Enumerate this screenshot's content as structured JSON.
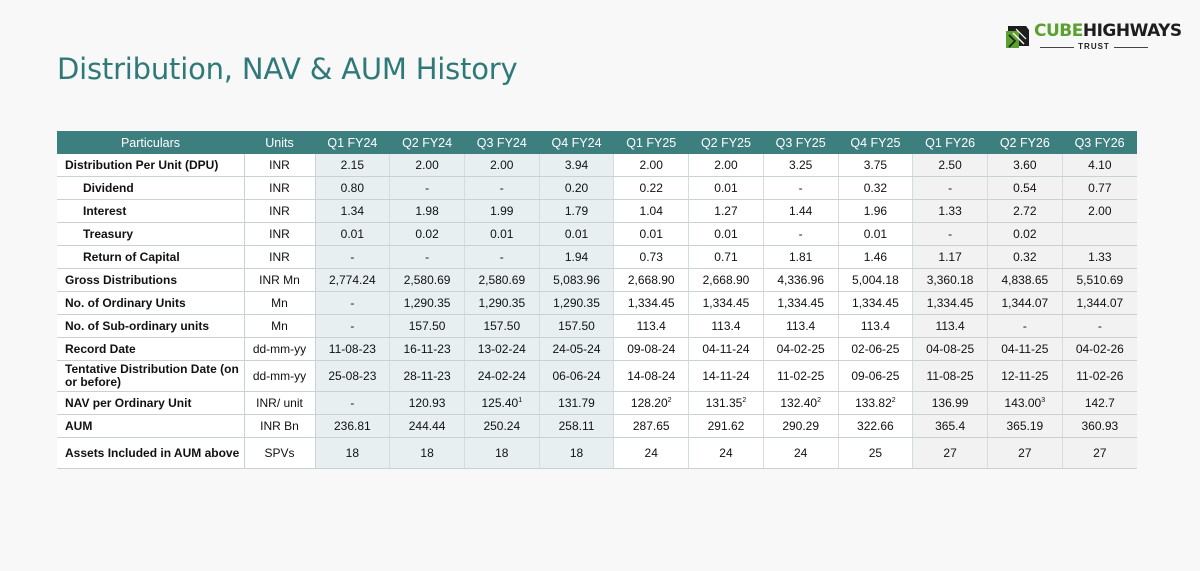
{
  "logo": {
    "word1": "CUBE",
    "word2": "HIGHWAYS",
    "sub": "TRUST",
    "colors": {
      "green": "#5aa12f",
      "dark": "#1e1e1e"
    }
  },
  "title": "Distribution, NAV & AUM History",
  "table": {
    "headers": [
      "Particulars",
      "Units",
      "Q1 FY24",
      "Q2 FY24",
      "Q3 FY24",
      "Q4 FY24",
      "Q1 FY25",
      "Q2 FY25",
      "Q3 FY25",
      "Q4 FY25",
      "Q1 FY26",
      "Q2 FY26",
      "Q3 FY26"
    ],
    "rows": [
      {
        "label": "Distribution Per Unit (DPU)",
        "unit": "INR",
        "sub": false,
        "values": [
          [
            "2.15",
            ""
          ],
          [
            "2.00",
            ""
          ],
          [
            "2.00",
            ""
          ],
          [
            "3.94",
            ""
          ],
          [
            "2.00",
            ""
          ],
          [
            "2.00",
            ""
          ],
          [
            "3.25",
            ""
          ],
          [
            "3.75",
            ""
          ],
          [
            "2.50",
            ""
          ],
          [
            "3.60",
            ""
          ],
          [
            "4.10",
            ""
          ]
        ]
      },
      {
        "label": "Dividend",
        "unit": "INR",
        "sub": true,
        "values": [
          [
            "0.80",
            ""
          ],
          [
            "-",
            ""
          ],
          [
            "-",
            ""
          ],
          [
            "0.20",
            ""
          ],
          [
            "0.22",
            ""
          ],
          [
            "0.01",
            ""
          ],
          [
            "-",
            ""
          ],
          [
            "0.32",
            ""
          ],
          [
            "-",
            ""
          ],
          [
            "0.54",
            ""
          ],
          [
            "0.77",
            ""
          ]
        ]
      },
      {
        "label": "Interest",
        "unit": "INR",
        "sub": true,
        "values": [
          [
            "1.34",
            ""
          ],
          [
            "1.98",
            ""
          ],
          [
            "1.99",
            ""
          ],
          [
            "1.79",
            ""
          ],
          [
            "1.04",
            ""
          ],
          [
            "1.27",
            ""
          ],
          [
            "1.44",
            ""
          ],
          [
            "1.96",
            ""
          ],
          [
            "1.33",
            ""
          ],
          [
            "2.72",
            ""
          ],
          [
            "2.00",
            ""
          ]
        ]
      },
      {
        "label": "Treasury",
        "unit": "INR",
        "sub": true,
        "values": [
          [
            "0.01",
            ""
          ],
          [
            "0.02",
            ""
          ],
          [
            "0.01",
            ""
          ],
          [
            "0.01",
            ""
          ],
          [
            "0.01",
            ""
          ],
          [
            "0.01",
            ""
          ],
          [
            "-",
            ""
          ],
          [
            "0.01",
            ""
          ],
          [
            "-",
            ""
          ],
          [
            "0.02",
            ""
          ],
          [
            "",
            ""
          ]
        ]
      },
      {
        "label": "Return of Capital",
        "unit": "INR",
        "sub": true,
        "values": [
          [
            "-",
            ""
          ],
          [
            "-",
            ""
          ],
          [
            "-",
            ""
          ],
          [
            "1.94",
            ""
          ],
          [
            "0.73",
            ""
          ],
          [
            "0.71",
            ""
          ],
          [
            "1.81",
            ""
          ],
          [
            "1.46",
            ""
          ],
          [
            "1.17",
            ""
          ],
          [
            "0.32",
            ""
          ],
          [
            "1.33",
            ""
          ]
        ]
      },
      {
        "label": "Gross Distributions",
        "unit": "INR Mn",
        "sub": false,
        "values": [
          [
            "2,774.24",
            ""
          ],
          [
            "2,580.69",
            ""
          ],
          [
            "2,580.69",
            ""
          ],
          [
            "5,083.96",
            ""
          ],
          [
            "2,668.90",
            ""
          ],
          [
            "2,668.90",
            ""
          ],
          [
            "4,336.96",
            ""
          ],
          [
            "5,004.18",
            ""
          ],
          [
            "3,360.18",
            ""
          ],
          [
            "4,838.65",
            ""
          ],
          [
            "5,510.69",
            ""
          ]
        ]
      },
      {
        "label": "No. of Ordinary Units",
        "unit": "Mn",
        "sub": false,
        "values": [
          [
            "-",
            ""
          ],
          [
            "1,290.35",
            ""
          ],
          [
            "1,290.35",
            ""
          ],
          [
            "1,290.35",
            ""
          ],
          [
            "1,334.45",
            ""
          ],
          [
            "1,334.45",
            ""
          ],
          [
            "1,334.45",
            ""
          ],
          [
            "1,334.45",
            ""
          ],
          [
            "1,334.45",
            ""
          ],
          [
            "1,344.07",
            ""
          ],
          [
            "1,344.07",
            ""
          ]
        ]
      },
      {
        "label": "No. of Sub-ordinary units",
        "unit": "Mn",
        "sub": false,
        "values": [
          [
            "-",
            ""
          ],
          [
            "157.50",
            ""
          ],
          [
            "157.50",
            ""
          ],
          [
            "157.50",
            ""
          ],
          [
            "113.4",
            ""
          ],
          [
            "113.4",
            ""
          ],
          [
            "113.4",
            ""
          ],
          [
            "113.4",
            ""
          ],
          [
            "113.4",
            ""
          ],
          [
            "-",
            ""
          ],
          [
            "-",
            ""
          ]
        ]
      },
      {
        "label": "Record Date",
        "unit": "dd-mm-yy",
        "sub": false,
        "values": [
          [
            "11-08-23",
            ""
          ],
          [
            "16-11-23",
            ""
          ],
          [
            "13-02-24",
            ""
          ],
          [
            "24-05-24",
            ""
          ],
          [
            "09-08-24",
            ""
          ],
          [
            "04-11-24",
            ""
          ],
          [
            "04-02-25",
            ""
          ],
          [
            "02-06-25",
            ""
          ],
          [
            "04-08-25",
            ""
          ],
          [
            "04-11-25",
            ""
          ],
          [
            "04-02-26",
            ""
          ]
        ]
      },
      {
        "label": "Tentative Distribution Date (on or before)",
        "unit": "dd-mm-yy",
        "sub": false,
        "tall": true,
        "values": [
          [
            "25-08-23",
            ""
          ],
          [
            "28-11-23",
            ""
          ],
          [
            "24-02-24",
            ""
          ],
          [
            "06-06-24",
            ""
          ],
          [
            "14-08-24",
            ""
          ],
          [
            "14-11-24",
            ""
          ],
          [
            "11-02-25",
            ""
          ],
          [
            "09-06-25",
            ""
          ],
          [
            "11-08-25",
            ""
          ],
          [
            "12-11-25",
            ""
          ],
          [
            "11-02-26",
            ""
          ]
        ]
      },
      {
        "label": "NAV per Ordinary Unit",
        "unit": "INR/ unit",
        "sub": false,
        "values": [
          [
            "-",
            ""
          ],
          [
            "120.93",
            ""
          ],
          [
            "125.40",
            "1"
          ],
          [
            "131.79",
            ""
          ],
          [
            "128.20",
            "2"
          ],
          [
            "131.35",
            "2"
          ],
          [
            "132.40",
            "2"
          ],
          [
            "133.82",
            "2"
          ],
          [
            "136.99",
            ""
          ],
          [
            "143.00",
            "3"
          ],
          [
            "142.7",
            ""
          ]
        ]
      },
      {
        "label": "AUM",
        "unit": "INR Bn",
        "sub": false,
        "values": [
          [
            "236.81",
            ""
          ],
          [
            "244.44",
            ""
          ],
          [
            "250.24",
            ""
          ],
          [
            "258.11",
            ""
          ],
          [
            "287.65",
            ""
          ],
          [
            "291.62",
            ""
          ],
          [
            "290.29",
            ""
          ],
          [
            "322.66",
            ""
          ],
          [
            "365.4",
            ""
          ],
          [
            "365.19",
            ""
          ],
          [
            "360.93",
            ""
          ]
        ]
      },
      {
        "label": "Assets Included in AUM above",
        "unit": "SPVs",
        "sub": false,
        "tall": true,
        "values": [
          [
            "18",
            ""
          ],
          [
            "18",
            ""
          ],
          [
            "18",
            ""
          ],
          [
            "18",
            ""
          ],
          [
            "24",
            ""
          ],
          [
            "24",
            ""
          ],
          [
            "24",
            ""
          ],
          [
            "25",
            ""
          ],
          [
            "27",
            ""
          ],
          [
            "27",
            ""
          ],
          [
            "27",
            ""
          ]
        ]
      }
    ]
  }
}
